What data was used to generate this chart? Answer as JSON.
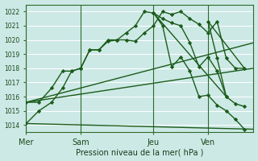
{
  "background_color": "#cde9e6",
  "grid_color": "#ffffff",
  "line_color": "#1a5c1a",
  "xlabel": "Pression niveau de la mer( hPa )",
  "ylim": [
    1013.5,
    1022.5
  ],
  "yticks": [
    1014,
    1015,
    1016,
    1017,
    1018,
    1019,
    1020,
    1021,
    1022
  ],
  "xtick_labels": [
    "Mer",
    "Sam",
    "Jeu",
    "Ven"
  ],
  "xtick_positions": [
    0,
    3,
    7,
    10
  ],
  "vline_positions": [
    0,
    3,
    7,
    10
  ],
  "xlim": [
    0,
    12.5
  ],
  "fan_low": {
    "x": [
      0,
      12.5
    ],
    "y": [
      1014.1,
      1013.7
    ]
  },
  "fan_high": {
    "x": [
      0,
      12.5
    ],
    "y": [
      1015.6,
      1019.8
    ]
  },
  "series_a": {
    "x": [
      0,
      0.7,
      1.4,
      2.0,
      2.5,
      3.0,
      3.5,
      4.0,
      4.5,
      5.0,
      5.5,
      6.0,
      6.5,
      7.0,
      7.5,
      8.0,
      8.5,
      9.0,
      9.5,
      10.0,
      10.5,
      11.0
    ],
    "y": [
      1014.1,
      1015.0,
      1015.6,
      1016.6,
      1017.8,
      1018.0,
      1019.3,
      1019.3,
      1020.0,
      1020.0,
      1020.5,
      1021.0,
      1022.0,
      1021.9,
      1021.5,
      1021.2,
      1021.0,
      1019.8,
      1018.1,
      1018.8,
      1017.8,
      1016.0
    ]
  },
  "series_b": {
    "x": [
      0,
      0.7,
      1.4,
      2.0,
      2.5,
      3.0,
      3.5,
      4.0,
      4.5,
      5.0,
      5.5,
      6.0,
      6.5,
      7.0,
      7.5,
      8.0,
      8.5,
      9.0,
      9.5,
      10.0,
      10.5,
      11.0,
      11.5,
      12.0
    ],
    "y": [
      1015.6,
      1015.6,
      1016.6,
      1017.8,
      1017.8,
      1018.0,
      1019.3,
      1019.3,
      1019.9,
      1020.0,
      1020.0,
      1019.9,
      1020.5,
      1021.0,
      1022.0,
      1021.8,
      1022.0,
      1021.5,
      1021.1,
      1020.5,
      1021.3,
      1018.7,
      1018.0,
      1018.0
    ]
  },
  "series_a2": {
    "x": [
      7.0,
      7.5,
      8.0,
      8.5,
      9.0,
      9.5,
      10.0,
      10.5,
      11.0,
      11.5,
      12.0
    ],
    "y": [
      1021.9,
      1021.0,
      1018.1,
      1018.8,
      1017.8,
      1016.0,
      1016.1,
      1015.4,
      1015.0,
      1014.4,
      1013.7
    ]
  },
  "series_b2": {
    "x": [
      10.0,
      10.5,
      11.0,
      11.5,
      12.0
    ],
    "y": [
      1021.3,
      1018.7,
      1016.0,
      1015.5,
      1015.3
    ]
  }
}
